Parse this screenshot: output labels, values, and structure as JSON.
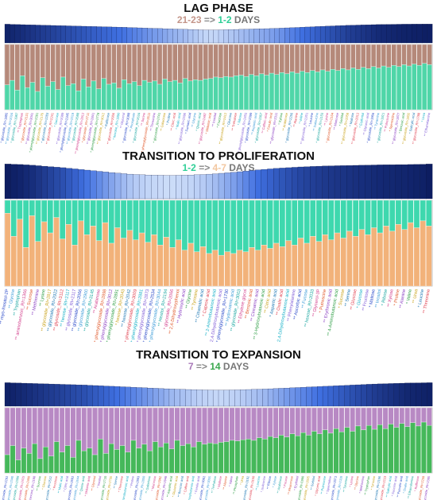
{
  "colors": {
    "lag_a": "#b5897a",
    "lag_b": "#4fd6a8",
    "prolif_a": "#3ed8ae",
    "prolif_b": "#f2b27a",
    "expan_a": "#b889c4",
    "expan_b": "#45b85a",
    "heat_dark": "#0b1a5c",
    "heat_mid": "#3f6fe0",
    "heat_light": "#dbe8fb"
  },
  "panels": [
    {
      "title": "LAG PHASE",
      "from": "21-23",
      "arrow": "=>",
      "to": "1-2",
      "unit": "DAYS",
      "from_color": "#c4968a",
      "to_color": "#2fcf97"
    },
    {
      "title": "TRANSITION TO PROLIFERATION",
      "from": "1-2",
      "arrow": "=>",
      "to": "4-7",
      "unit": "DAYS",
      "from_color": "#2fcf97",
      "to_color": "#f2c7a0"
    },
    {
      "title": "TRANSITION TO EXPANSION",
      "from": "7",
      "arrow": "=>",
      "to": "14",
      "unit": "DAYS",
      "from_color": "#a878b8",
      "to_color": "#3aa84e"
    }
  ],
  "chart_data": [
    {
      "type": "bar",
      "stacked": true,
      "bar_count": 84,
      "series": [
        {
          "color": "#b5897a",
          "values": [
            0.62,
            0.55,
            0.7,
            0.48,
            0.66,
            0.58,
            0.72,
            0.51,
            0.64,
            0.57,
            0.69,
            0.5,
            0.63,
            0.6,
            0.71,
            0.53,
            0.65,
            0.56,
            0.68,
            0.52,
            0.61,
            0.59,
            0.67,
            0.54,
            0.6,
            0.57,
            0.63,
            0.55,
            0.58,
            0.56,
            0.61,
            0.53,
            0.57,
            0.55,
            0.59,
            0.52,
            0.56,
            0.54,
            0.55,
            0.53,
            0.52,
            0.5,
            0.51,
            0.49,
            0.5,
            0.48,
            0.47,
            0.49,
            0.46,
            0.48,
            0.45,
            0.47,
            0.44,
            0.46,
            0.43,
            0.45,
            0.42,
            0.44,
            0.41,
            0.43,
            0.4,
            0.42,
            0.39,
            0.41,
            0.38,
            0.4,
            0.37,
            0.39,
            0.36,
            0.38,
            0.35,
            0.37,
            0.34,
            0.36,
            0.33,
            0.35,
            0.32,
            0.34,
            0.31,
            0.33,
            0.3,
            0.32,
            0.29,
            0.31
          ]
        },
        {
          "color": "#4fd6a8",
          "values": [
            0.38,
            0.45,
            0.3,
            0.52,
            0.34,
            0.42,
            0.28,
            0.49,
            0.36,
            0.43,
            0.31,
            0.5,
            0.37,
            0.4,
            0.29,
            0.47,
            0.35,
            0.44,
            0.32,
            0.48,
            0.39,
            0.41,
            0.33,
            0.46,
            0.4,
            0.43,
            0.37,
            0.45,
            0.42,
            0.44,
            0.39,
            0.47,
            0.43,
            0.45,
            0.41,
            0.48,
            0.44,
            0.46,
            0.45,
            0.47,
            0.48,
            0.5,
            0.49,
            0.51,
            0.5,
            0.52,
            0.53,
            0.51,
            0.54,
            0.52,
            0.55,
            0.53,
            0.56,
            0.54,
            0.57,
            0.55,
            0.58,
            0.56,
            0.59,
            0.57,
            0.6,
            0.58,
            0.61,
            0.59,
            0.62,
            0.6,
            0.63,
            0.61,
            0.64,
            0.62,
            0.65,
            0.63,
            0.66,
            0.64,
            0.67,
            0.65,
            0.68,
            0.66,
            0.69,
            0.67,
            0.7,
            0.68,
            0.71,
            0.69
          ]
        }
      ],
      "heat": [
        0.05,
        0.08,
        0.1,
        0.12,
        0.14,
        0.16,
        0.18,
        0.2,
        0.22,
        0.24,
        0.26,
        0.28,
        0.3,
        0.32,
        0.34,
        0.36,
        0.38,
        0.4,
        0.42,
        0.44,
        0.46,
        0.48,
        0.5,
        0.52,
        0.55,
        0.58,
        0.6,
        0.63,
        0.66,
        0.68,
        0.7,
        0.73,
        0.76,
        0.78,
        0.8,
        0.82,
        0.85,
        0.87,
        0.9,
        0.92,
        0.93,
        0.92,
        0.9,
        0.88,
        0.86,
        0.84,
        0.82,
        0.8,
        0.78,
        0.76,
        0.74,
        0.72,
        0.7,
        0.67,
        0.64,
        0.6,
        0.57,
        0.54,
        0.5,
        0.47,
        0.44,
        0.4,
        0.37,
        0.34,
        0.31,
        0.28,
        0.25,
        0.22,
        0.2,
        0.18,
        0.16,
        0.14,
        0.12,
        0.1,
        0.09,
        0.08,
        0.07,
        0.06,
        0.05,
        0.05,
        0.04,
        0.04,
        0.03,
        0.03
      ],
      "labels": [
        "* glycoside_RI=1885",
        "** glycoside_RI=2034",
        "* glycoside_RI=1987",
        "** Tryptophan",
        "* glycoside_RI=2131",
        "** glycoside_RI=3041",
        "* phenylglycoside_RI=2281",
        "** glycoside_RI=2176",
        "* glycoside_RI=2283",
        "** glycoside_RI=2241",
        "* Sucrose",
        "** glycoside_RI=2089",
        "* phenylglycoside_RI=2345",
        "** glycoside_RI=2519",
        "* glycoside_RI=2688",
        "** phenylglycoside_RI=2912",
        "* glycoside_RI=2711",
        "** glycoside_RI=2841",
        "* phenylglycoside_RI=2778",
        "** glycoside_RI=3012",
        "* Raffinose",
        "** glycoside_RI=2956",
        "* hexose_RI=1890",
        "** Glycerol",
        "* glycoside_RI=3088",
        "** Phosphate",
        "* glycoside_RI=2634",
        "** Serine",
        "* phenylglycoside_RI=2611",
        "** Threonine",
        "* glycoside_RI=2741",
        "** Galactose",
        "* Proline",
        "** Citric acid",
        "* Malic acid",
        "** glycoside_RI=2590",
        "* Fumaric acid",
        "** Glycine",
        "* Quinic acid",
        "** glycoside_RI=2487",
        "* Shikimic acid",
        "** Inositol",
        "* Fructose",
        "** glycoside_RI=2412",
        "* Glucose",
        "** Trehalose",
        "* Ribose",
        "** phenylglycoside_RI=2455",
        "* glycoside_RI=2399",
        "** Aspartic acid",
        "* glycoside_RI=2367",
        "** Caffeic acid",
        "* Ferulic acid",
        "** glycoside_RI=2311",
        "* Xylose",
        "** Arabinose",
        "* glycoside_RI=2256",
        "** Alanine",
        "* Valine",
        "** glycoside_RI=2201",
        "* Leucine",
        "** Isoleucine",
        "* glycoside_RI=2155",
        "** Lysine",
        "* glycoside_RI=2104",
        "** Mannose",
        "* Sorbitol",
        "** glycoside_RI=2058",
        "* Maltose",
        "** glycoside_RI=2012",
        "* Erythritol",
        "** Glyceric acid",
        "* glycoside_RI=1966",
        "** Tyramine",
        "* glycoside_RI=1921",
        "** Putrescine",
        "* Spermidine",
        "** glycoside_RI=1877",
        "* Benzoic acid",
        "** glycoside_RI=1832",
        "* Salicylic acid",
        "** glycoside_RI=1788",
        "* Urea",
        "** Ethanolamine"
      ]
    },
    {
      "type": "bar",
      "stacked": true,
      "bar_count": 70,
      "series": [
        {
          "color": "#3ed8ae",
          "values": [
            0.15,
            0.42,
            0.22,
            0.55,
            0.18,
            0.48,
            0.25,
            0.38,
            0.2,
            0.45,
            0.28,
            0.52,
            0.24,
            0.4,
            0.3,
            0.47,
            0.26,
            0.5,
            0.32,
            0.44,
            0.35,
            0.46,
            0.38,
            0.49,
            0.4,
            0.52,
            0.43,
            0.55,
            0.46,
            0.58,
            0.5,
            0.6,
            0.54,
            0.62,
            0.58,
            0.64,
            0.6,
            0.62,
            0.58,
            0.6,
            0.55,
            0.58,
            0.52,
            0.56,
            0.5,
            0.54,
            0.47,
            0.52,
            0.44,
            0.5,
            0.42,
            0.48,
            0.4,
            0.46,
            0.38,
            0.44,
            0.36,
            0.42,
            0.34,
            0.4,
            0.32,
            0.38,
            0.3,
            0.36,
            0.28,
            0.34,
            0.26,
            0.32,
            0.24,
            0.3
          ]
        },
        {
          "color": "#f2b27a",
          "values": [
            0.85,
            0.58,
            0.78,
            0.45,
            0.82,
            0.52,
            0.75,
            0.62,
            0.8,
            0.55,
            0.72,
            0.48,
            0.76,
            0.6,
            0.7,
            0.53,
            0.74,
            0.5,
            0.68,
            0.56,
            0.65,
            0.54,
            0.62,
            0.51,
            0.6,
            0.48,
            0.57,
            0.45,
            0.54,
            0.42,
            0.5,
            0.4,
            0.46,
            0.38,
            0.42,
            0.36,
            0.4,
            0.38,
            0.42,
            0.4,
            0.45,
            0.42,
            0.48,
            0.44,
            0.5,
            0.46,
            0.53,
            0.48,
            0.56,
            0.5,
            0.58,
            0.52,
            0.6,
            0.54,
            0.62,
            0.56,
            0.64,
            0.58,
            0.66,
            0.6,
            0.68,
            0.62,
            0.7,
            0.64,
            0.72,
            0.66,
            0.74,
            0.68,
            0.76,
            0.7
          ]
        }
      ],
      "heat": [
        0.02,
        0.04,
        0.06,
        0.09,
        0.12,
        0.16,
        0.2,
        0.24,
        0.28,
        0.32,
        0.37,
        0.42,
        0.47,
        0.52,
        0.57,
        0.62,
        0.67,
        0.72,
        0.77,
        0.81,
        0.85,
        0.88,
        0.9,
        0.92,
        0.93,
        0.94,
        0.95,
        0.95,
        0.94,
        0.93,
        0.92,
        0.9,
        0.88,
        0.85,
        0.82,
        0.78,
        0.74,
        0.7,
        0.65,
        0.6,
        0.55,
        0.5,
        0.46,
        0.42,
        0.38,
        0.35,
        0.32,
        0.29,
        0.26,
        0.24,
        0.22,
        0.2,
        0.18,
        0.17,
        0.16,
        0.15,
        0.14,
        0.13,
        0.12,
        0.11,
        0.1,
        0.09,
        0.08,
        0.08,
        0.07,
        0.07,
        0.06,
        0.05,
        0.04,
        0.02
      ],
      "labels": [
        "** myo-Inositol-2P",
        "** Glycine",
        "** Tryptophan",
        "** aminobenzoic_RI=1366",
        "** Sucrose",
        "** Methionine",
        "** Lysine",
        "** glycoside_RI=2817",
        "** glycoside_RI=2922",
        "** glycoside_RI=3112",
        "** hexose_RI=2117",
        "** glycoside_RI=2117",
        "** glycoside_RI=2066",
        "** glycoside_RI=2900",
        "** glycoside_RI=3145",
        "** Arabinose",
        "* phenylglycoside_RI=2898",
        "* phenylglycoside_RI=3012",
        "* phenylglycoside_RI=2891",
        "* hexose_RI=2043",
        "** hexose_RI=2042",
        "* phenylglycoside_RI=3009",
        "* phenylglycoside_RI=2881",
        "* phenylglycoside_RI=2873",
        "** phenylglycoside_RI=2534",
        "* phenylglycoside_RI=3044",
        "** Hexitol_RI=2194",
        "* glycoside_RI=2066",
        "** 2,4-Dihydroxyphenol",
        "** Hydroxylic acid",
        "** Glycine",
        "** Tyrosine",
        "** Citramalic acid",
        "* Caproic acid",
        "** 2-Aminobutanoic acid",
        "** 2,4-Dihydroxybutanoic acid",
        "** phenylglycoside_RI=1730",
        "** Hydroxamic acid",
        "** glycoside_RI=3003",
        "** Ethylene glycol",
        "** Benzoic acid",
        "** Cinnamic acid",
        "** 3-Hydroxybutanoic acid",
        "** Citric acid",
        "* Aspartic acid",
        "** Oxalic acid",
        "** 2,4-Dihydroxybutanoic acid",
        "** Phenylalanine",
        "** Ascorbic acid",
        "** Fucose",
        "** hexose_RI=2033",
        "** Glycerol-3P",
        "* Putrescine",
        "** Erythronic acid",
        "** 4-Aminobutanoic acid",
        "* Sucrose",
        "** Serine",
        "** Glucose",
        "* Glucose",
        "** Fructose",
        "* Maltose",
        "** Inositol",
        "* Ribose",
        "** Xylose",
        "* Proline",
        "** Alanine",
        "* Valine",
        "** Urea",
        "* Leucine",
        "** Threonine"
      ]
    },
    {
      "type": "bar",
      "stacked": true,
      "bar_count": 78,
      "series": [
        {
          "color": "#b889c4",
          "values": [
            0.72,
            0.58,
            0.8,
            0.62,
            0.7,
            0.55,
            0.78,
            0.6,
            0.74,
            0.52,
            0.68,
            0.58,
            0.76,
            0.5,
            0.66,
            0.62,
            0.72,
            0.48,
            0.7,
            0.55,
            0.64,
            0.58,
            0.68,
            0.5,
            0.62,
            0.56,
            0.66,
            0.52,
            0.6,
            0.54,
            0.63,
            0.5,
            0.58,
            0.55,
            0.6,
            0.52,
            0.56,
            0.54,
            0.55,
            0.53,
            0.52,
            0.5,
            0.51,
            0.49,
            0.48,
            0.5,
            0.46,
            0.48,
            0.44,
            0.46,
            0.42,
            0.45,
            0.4,
            0.43,
            0.38,
            0.42,
            0.36,
            0.4,
            0.34,
            0.39,
            0.32,
            0.37,
            0.3,
            0.36,
            0.28,
            0.34,
            0.27,
            0.33,
            0.26,
            0.32,
            0.25,
            0.3,
            0.24,
            0.29,
            0.23,
            0.28,
            0.22,
            0.27
          ]
        },
        {
          "color": "#45b85a",
          "values": [
            0.28,
            0.42,
            0.2,
            0.38,
            0.3,
            0.45,
            0.22,
            0.4,
            0.26,
            0.48,
            0.32,
            0.42,
            0.24,
            0.5,
            0.34,
            0.38,
            0.28,
            0.52,
            0.3,
            0.45,
            0.36,
            0.42,
            0.32,
            0.5,
            0.38,
            0.44,
            0.34,
            0.48,
            0.4,
            0.46,
            0.37,
            0.5,
            0.42,
            0.45,
            0.4,
            0.48,
            0.44,
            0.46,
            0.45,
            0.47,
            0.48,
            0.5,
            0.49,
            0.51,
            0.52,
            0.5,
            0.54,
            0.52,
            0.56,
            0.54,
            0.58,
            0.55,
            0.6,
            0.57,
            0.62,
            0.58,
            0.64,
            0.6,
            0.66,
            0.61,
            0.68,
            0.63,
            0.7,
            0.64,
            0.72,
            0.66,
            0.73,
            0.67,
            0.74,
            0.68,
            0.75,
            0.7,
            0.76,
            0.71,
            0.77,
            0.72,
            0.78,
            0.73
          ]
        }
      ],
      "heat": [
        0.04,
        0.06,
        0.08,
        0.1,
        0.12,
        0.14,
        0.16,
        0.18,
        0.2,
        0.22,
        0.24,
        0.26,
        0.28,
        0.3,
        0.32,
        0.35,
        0.38,
        0.41,
        0.44,
        0.47,
        0.5,
        0.53,
        0.56,
        0.59,
        0.62,
        0.65,
        0.68,
        0.71,
        0.74,
        0.77,
        0.8,
        0.82,
        0.84,
        0.86,
        0.88,
        0.9,
        0.91,
        0.92,
        0.93,
        0.93,
        0.92,
        0.91,
        0.9,
        0.88,
        0.86,
        0.84,
        0.82,
        0.8,
        0.77,
        0.74,
        0.71,
        0.68,
        0.65,
        0.62,
        0.59,
        0.56,
        0.53,
        0.5,
        0.47,
        0.44,
        0.41,
        0.38,
        0.35,
        0.32,
        0.29,
        0.26,
        0.23,
        0.2,
        0.18,
        0.16,
        0.14,
        0.12,
        0.1,
        0.08,
        0.07,
        0.06,
        0.05,
        0.04
      ],
      "labels": [
        "** glycoside_RI=2291",
        "* glycoside_RI=2340",
        "** glycoside_RI=2388",
        "* glycoside_RI=2415",
        "** phenylglycoside_RI=2460",
        "* hexose_RI=2188",
        "** Sucrose",
        "* Glucose",
        "** glycoside_RI=2522",
        "* Fructose",
        "** Malic acid",
        "* Citric acid",
        "** glycoside_RI=2601",
        "* glycoside_RI=2644",
        "** Quinic acid",
        "* Shikimic acid",
        "** Glycerol",
        "* Inositol",
        "** glycoside_RI=2710",
        "* phenylglycoside_RI=2755",
        "** Serine",
        "* Threonine",
        "** 2-Aminobutanoic acid",
        "* Proline",
        "** glycoside_RI=2803",
        "* glycoside_RI=2850",
        "** Galactose",
        "* Mannose",
        "** glycoside_RI=2902",
        "* glycoside_RI=2948",
        "** Aspartic acid",
        "* Glutamic acid",
        "** Benzoic acid",
        "* Caffeic acid",
        "** 2,4-Dihydroxybutanoic acid",
        "* Ferulic acid",
        "** glycoside_RI=3001",
        "* glycoside_RI=3055",
        "** Trehalose",
        "* Maltose",
        "** Alanine",
        "* Valine",
        "** Phosphate",
        "* Urea",
        "** glycoside_RI=3102",
        "* glycoside_RI=3150",
        "** Leucine",
        "* Isoleucine",
        "** Ribose",
        "* Xylose",
        "** Arabinose",
        "* Fucose",
        "** Rhamnose",
        "* Erythritol",
        "** glycoside_RI=1980",
        "* glycoside_RI=2025",
        "** Sorbitol",
        "* Glyceric acid",
        "** Putrescine",
        "* Spermidine",
        "** glycoside_RI=2071",
        "* glycoside_RI=2118",
        "** Tyramine",
        "* Lysine",
        "** Glycine",
        "* Methionine",
        "** Tryptophan",
        "* Tyrosine",
        "** glycoside_RI=2166",
        "* glycoside_RI=2213",
        "** Salicylic acid",
        "* Succinic acid",
        "** Fumaric acid",
        "* Oxalic acid",
        "** Ethanolamine",
        "* Raffinose",
        "** glycoside_RI=2259",
        "* glycoside_RI=2305"
      ]
    }
  ],
  "label_palette": [
    "#2a49c8",
    "#3e9cd8",
    "#1aa6a0",
    "#d13c8a",
    "#e0582a",
    "#8a3fc2",
    "#2f9e46",
    "#c9a21a",
    "#1f78b4",
    "#e0404f",
    "#17b0c7",
    "#7f5bd6"
  ]
}
